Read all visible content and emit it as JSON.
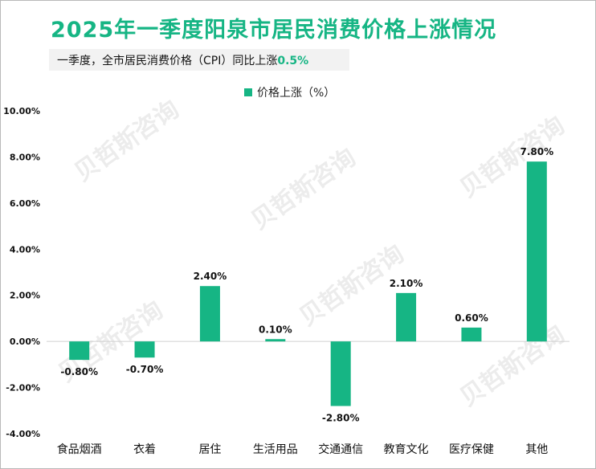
{
  "title": "2025年一季度阳泉市居民消费价格上涨情况",
  "subtitle": {
    "text": "一季度，全市居民消费价格（CPI）同比上涨",
    "highlight": "0.5%"
  },
  "colors": {
    "accent": "#16b584",
    "bar": "#16b584"
  },
  "chart_data": {
    "type": "bar",
    "title": "2025年一季度阳泉市居民消费价格上涨情况",
    "legend": "价格上涨（%）",
    "legend_position": "top-center",
    "categories": [
      "食品烟酒",
      "衣着",
      "居住",
      "生活用品",
      "交通通信",
      "教育文化",
      "医疗保健",
      "其他"
    ],
    "series": [
      {
        "name": "价格上涨（%）",
        "values": [
          -0.8,
          -0.7,
          2.4,
          0.1,
          -2.8,
          2.1,
          0.6,
          7.8
        ]
      }
    ],
    "value_labels": [
      "-0.80%",
      "-0.70%",
      "2.40%",
      "0.10%",
      "-2.80%",
      "2.10%",
      "0.60%",
      "7.80%"
    ],
    "ylim": [
      -4,
      10
    ],
    "yticks": [
      -4,
      -2,
      0,
      2,
      4,
      6,
      8,
      10
    ],
    "ytick_labels": [
      "-4.00%",
      "-2.00%",
      "0.00%",
      "2.00%",
      "4.00%",
      "6.00%",
      "8.00%",
      "10.00%"
    ],
    "xlabel": "",
    "ylabel": "",
    "grid": false
  }
}
